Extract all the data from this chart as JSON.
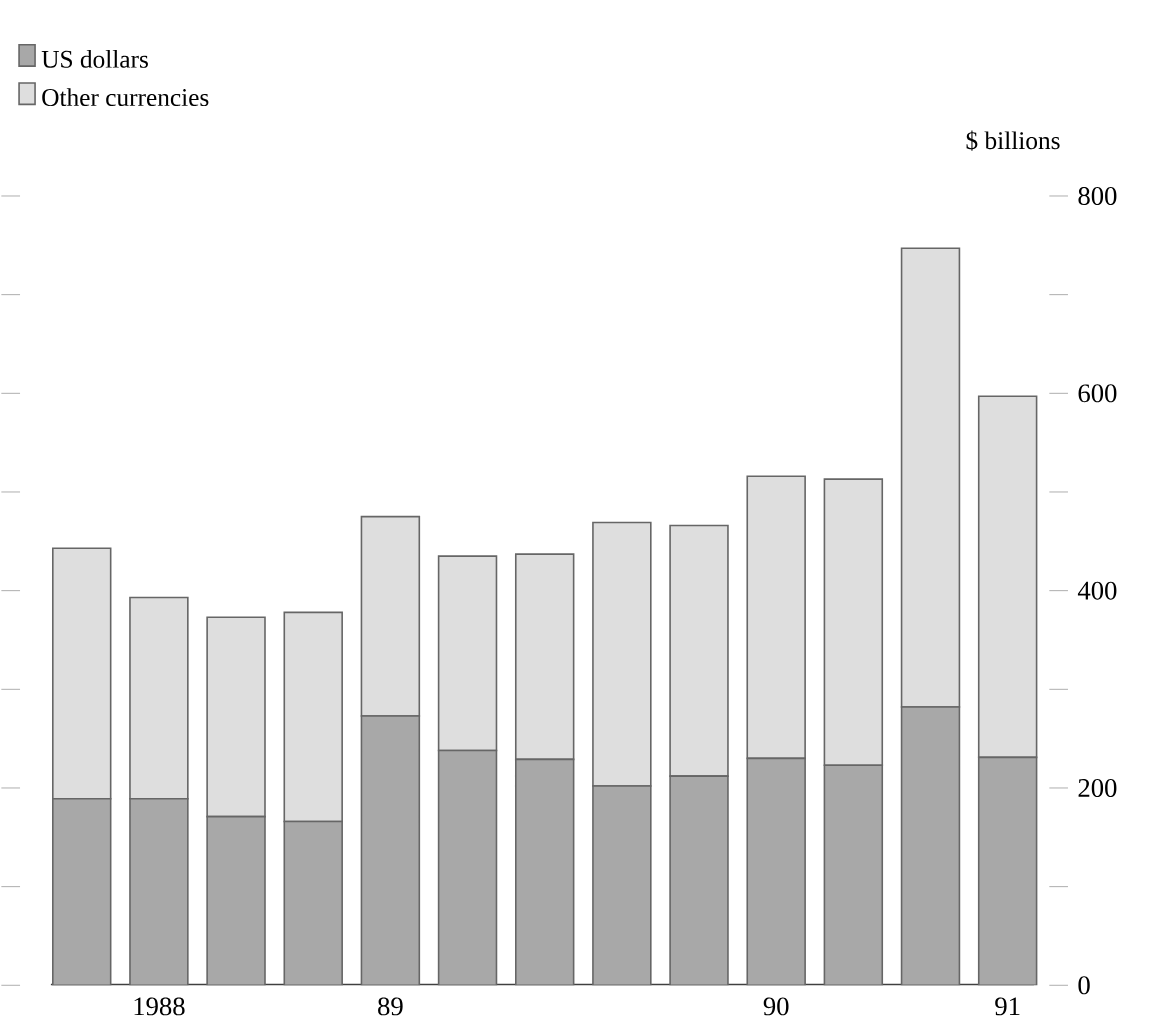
{
  "chart_data": {
    "type": "bar",
    "stacked": true,
    "ylabel": "$ billions",
    "categories": [
      null,
      "1988",
      null,
      null,
      "89",
      null,
      null,
      null,
      null,
      "90",
      null,
      null,
      "91"
    ],
    "series": [
      {
        "name": "US dollars",
        "color": "#a8a8a8",
        "values": [
          189,
          189,
          171,
          166,
          273,
          238,
          229,
          202,
          212,
          230,
          223,
          282,
          231
        ]
      },
      {
        "name": "Other currencies",
        "color": "#dedede",
        "values": [
          254,
          204,
          202,
          212,
          202,
          197,
          208,
          267,
          254,
          286,
          290,
          465,
          366
        ]
      }
    ],
    "ylim": [
      0,
      800
    ],
    "yticks": [
      0,
      {
        "value": 100,
        "label": null
      },
      200,
      {
        "value": 300,
        "label": null
      },
      400,
      {
        "value": 500,
        "label": null
      },
      600,
      {
        "value": 700,
        "label": null
      },
      800
    ],
    "legend": "top left",
    "grid": false
  }
}
